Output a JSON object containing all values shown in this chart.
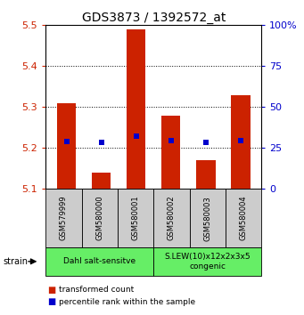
{
  "title": "GDS3873 / 1392572_at",
  "samples": [
    "GSM579999",
    "GSM580000",
    "GSM580001",
    "GSM580002",
    "GSM580003",
    "GSM580004"
  ],
  "bar_bottom": 5.1,
  "bar_tops": [
    5.31,
    5.14,
    5.49,
    5.28,
    5.17,
    5.33
  ],
  "blue_vals": [
    5.215,
    5.213,
    5.228,
    5.218,
    5.213,
    5.218
  ],
  "bar_color": "#cc2200",
  "blue_color": "#0000cc",
  "ylim": [
    5.1,
    5.5
  ],
  "yticks_left": [
    5.1,
    5.2,
    5.3,
    5.4,
    5.5
  ],
  "yticks_right": [
    0,
    25,
    50,
    75,
    100
  ],
  "ytick_right_labels": [
    "0",
    "25",
    "50",
    "75",
    "100%"
  ],
  "right_ylim": [
    0,
    100
  ],
  "group1_label": "Dahl salt-sensitve",
  "group2_label": "S.LEW(10)x12x2x3x5\ncongenic",
  "group_color": "#66ee66",
  "sample_box_color": "#cccccc",
  "bar_width": 0.55,
  "title_fontsize": 10,
  "legend_red_label": "transformed count",
  "legend_blue_label": "percentile rank within the sample",
  "strain_label": "strain",
  "background_color": "#ffffff",
  "left_tick_color": "#cc2200",
  "right_tick_color": "#0000cc"
}
